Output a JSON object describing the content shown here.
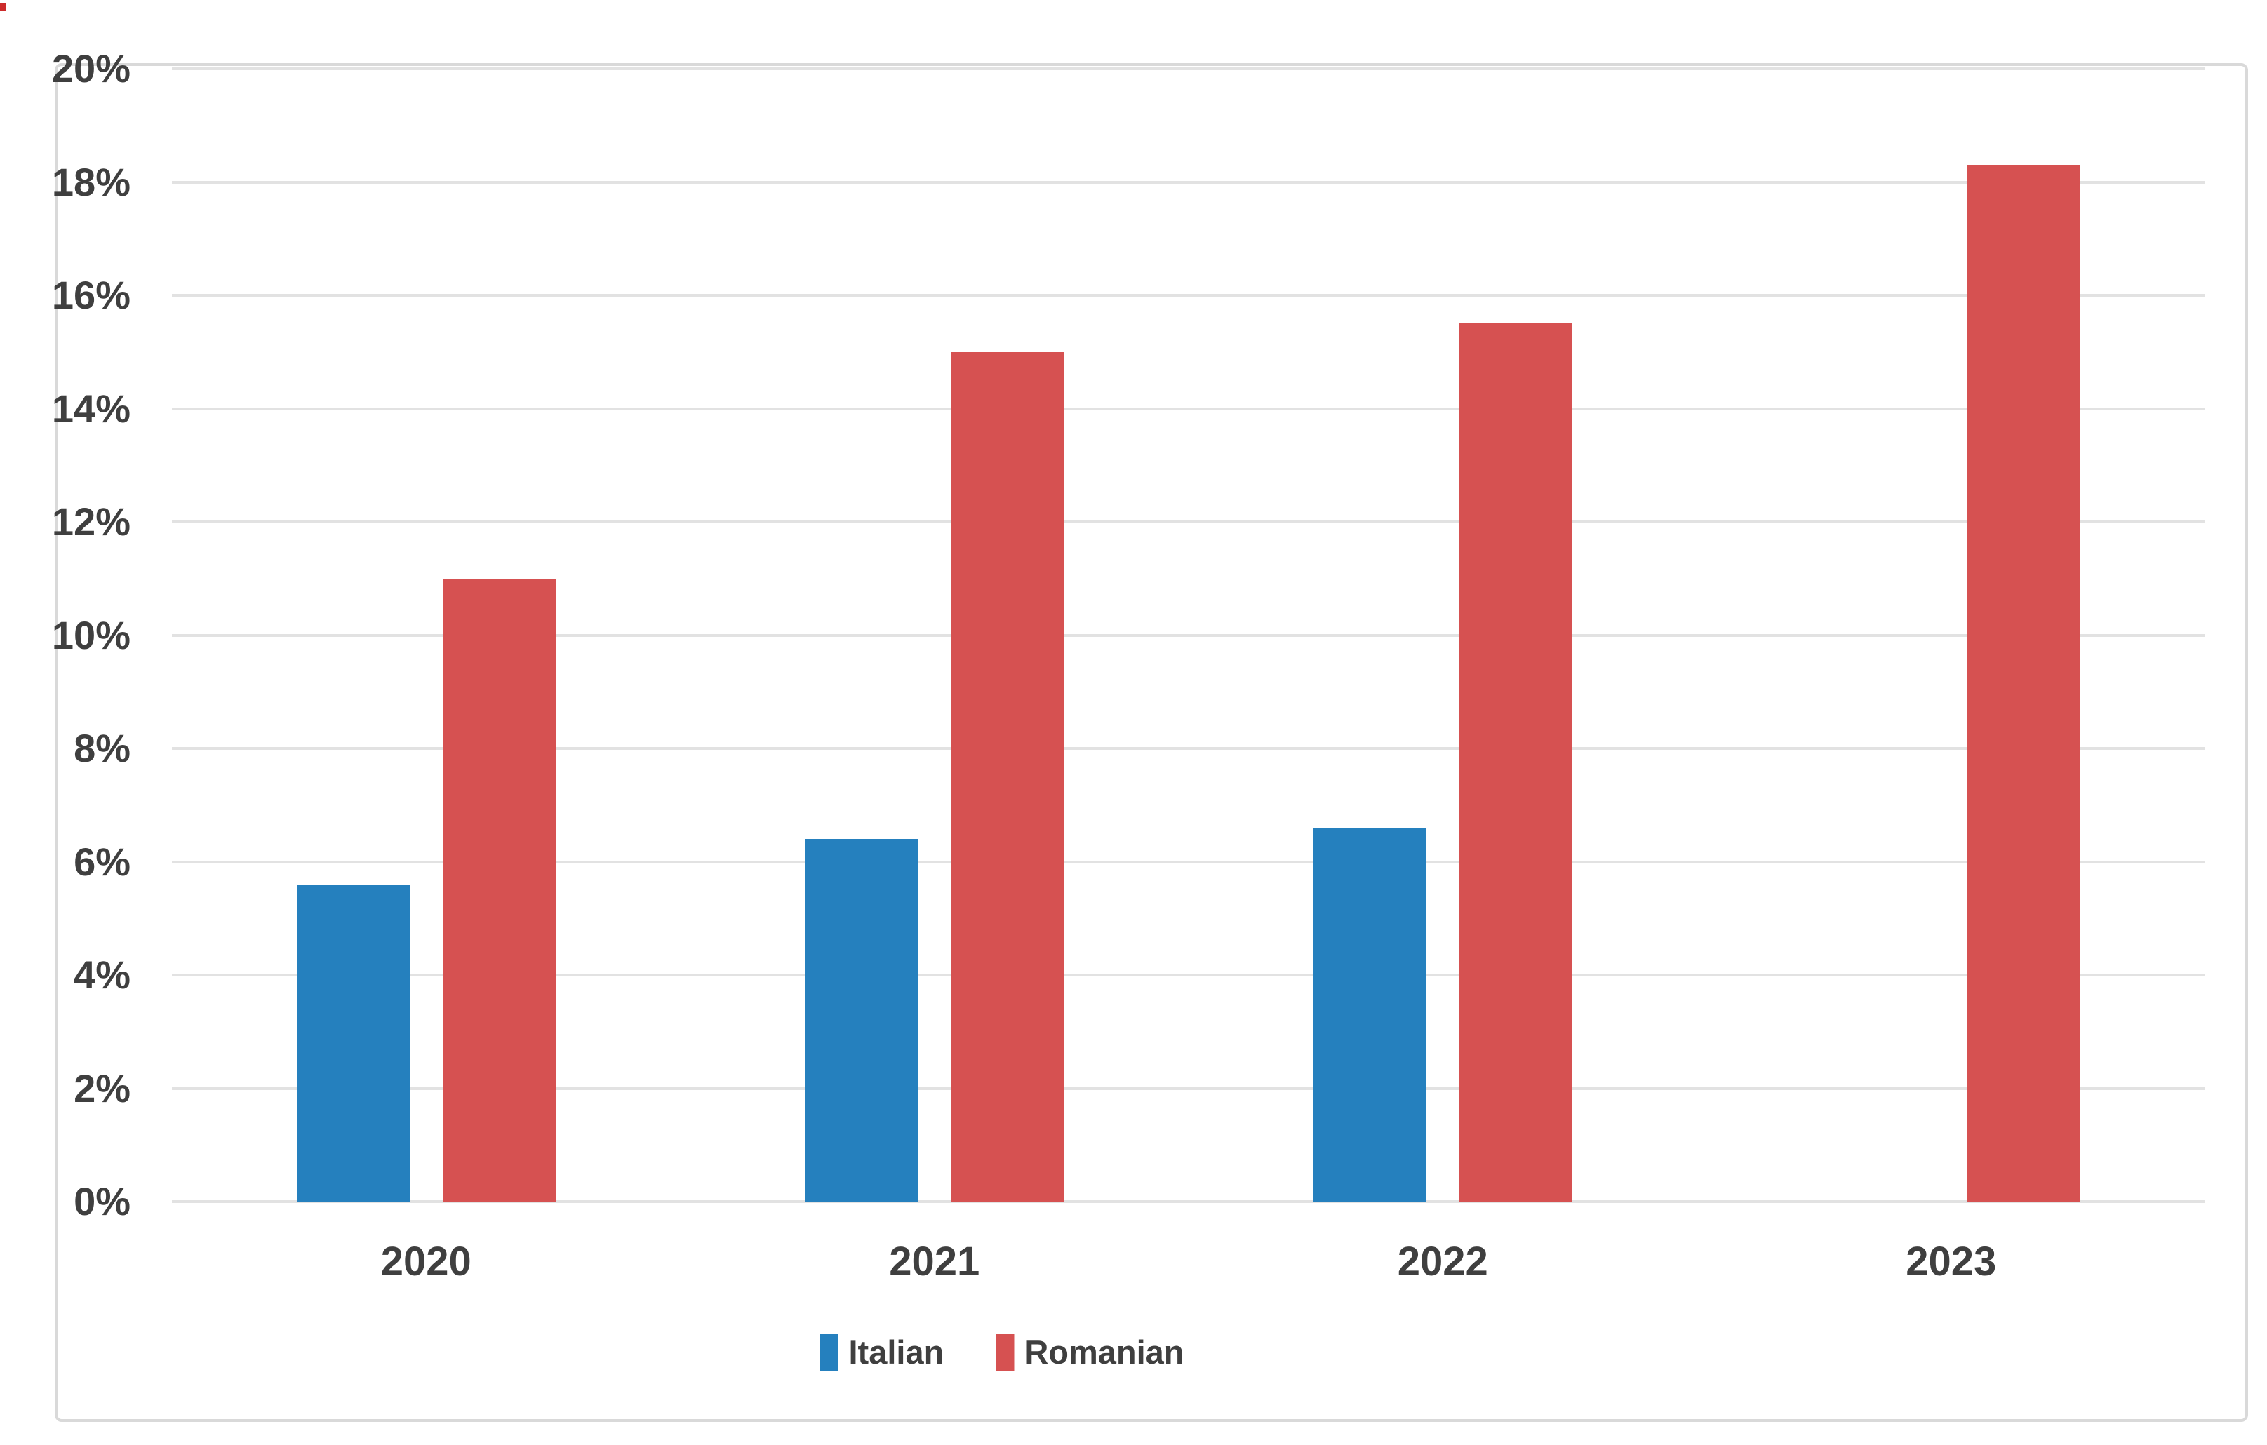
{
  "chart_data": {
    "type": "bar",
    "categories": [
      "2020",
      "2021",
      "2022",
      "2023"
    ],
    "series": [
      {
        "name": "Italian",
        "color": "#2580BE",
        "values": [
          5.6,
          6.4,
          6.6,
          null
        ]
      },
      {
        "name": "Romanian",
        "color": "#D65151",
        "values": [
          11.0,
          15.0,
          15.5,
          18.3
        ]
      }
    ],
    "title": "",
    "xlabel": "",
    "ylabel": "",
    "y_axis": {
      "min": 0,
      "max": 20,
      "step": 2,
      "tick_format": "{v}%"
    },
    "grid": true,
    "legend_position": "bottom-center"
  },
  "legend": {
    "items": [
      {
        "label": "Italian",
        "color": "#2580BE"
      },
      {
        "label": "Romanian",
        "color": "#D65151"
      }
    ]
  },
  "colors": {
    "bar_blue": "#2580BE",
    "bar_red": "#D65151",
    "grid_line": "#E2E2E2",
    "frame_border": "#D9D9D9",
    "axis_text": "#3F3F3F",
    "background": "#FFFFFF",
    "corner_mark": "#CC2B2B"
  }
}
